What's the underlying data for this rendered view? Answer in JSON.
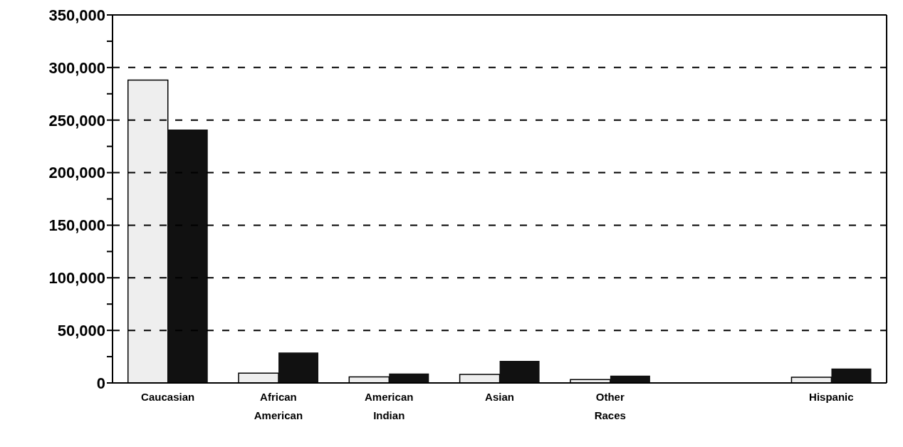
{
  "chart_data": {
    "type": "bar",
    "categories": [
      "Caucasian",
      "African American",
      "American Indian",
      "Asian",
      "Other Races",
      null,
      "Hispanic"
    ],
    "series": [
      {
        "color": "#eeeeee",
        "values": [
          288000,
          9300,
          5700,
          8200,
          3200,
          null,
          5400
        ]
      },
      {
        "color": "#111111",
        "values": [
          241000,
          29000,
          9000,
          21000,
          6900,
          null,
          13700
        ]
      }
    ],
    "ylim": [
      0,
      350000
    ],
    "yticks": [
      0,
      {
        "value": 25000,
        "label": null
      },
      {
        "value": 50000,
        "label": "50,000"
      },
      {
        "value": 75000,
        "label": null
      },
      {
        "value": 100000,
        "label": "100,000"
      },
      {
        "value": 125000,
        "label": null
      },
      {
        "value": 150000,
        "label": "150,000"
      },
      {
        "value": 175000,
        "label": null
      },
      {
        "value": 200000,
        "label": "200,000"
      },
      {
        "value": 225000,
        "label": null
      },
      {
        "value": 250000,
        "label": "250,000"
      },
      {
        "value": 275000,
        "label": null
      },
      {
        "value": 300000,
        "label": "300,000"
      },
      {
        "value": 325000,
        "label": null
      },
      {
        "value": 350000,
        "label": "350,000"
      }
    ],
    "grid": "y",
    "line_style": "dashed",
    "legend": false
  }
}
